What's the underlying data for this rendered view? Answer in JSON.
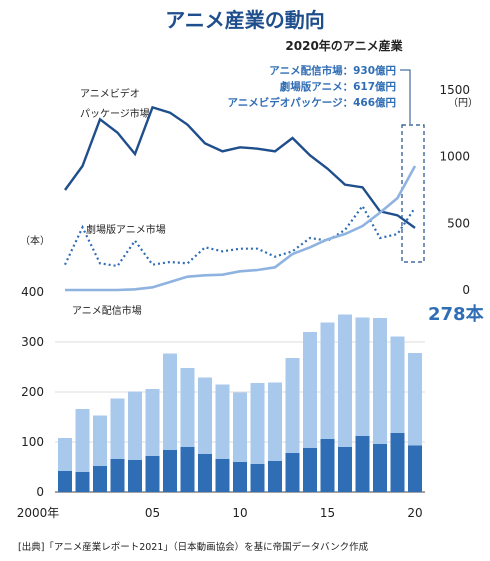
{
  "title": "アニメ産業の動向",
  "subtitle": "2020年のアニメ産業",
  "callouts": [
    {
      "label": "アニメ配信市場",
      "value": "930億円"
    },
    {
      "label": "劇場版アニメ",
      "value": "617億円"
    },
    {
      "label": "アニメビデオパッケージ",
      "value": "466億円"
    }
  ],
  "series_labels": {
    "video_line1": "アニメビデオ",
    "video_line2": "パッケージ市場",
    "theater": "劇場版アニメ市場",
    "streaming": "アニメ配信市場"
  },
  "left_axis": {
    "unit": "（本）",
    "ticks": [
      "400",
      "300",
      "200",
      "100",
      "0"
    ]
  },
  "right_axis": {
    "unit": "（円）",
    "ticks": [
      "1500",
      "1000",
      "500",
      "0"
    ]
  },
  "x_ticks": [
    "2000年",
    "05",
    "10",
    "15",
    "20"
  ],
  "callout_value": "278本",
  "source": "[出典]「アニメ産業レポート2021」（日本動画協会）を基に帝国データバンク作成",
  "colors": {
    "dark": "#2f6db5",
    "light": "#a9c9ec",
    "line": "#1f4e8c",
    "stream": "#8fb3e0"
  },
  "chart_data": {
    "type": "bar+line",
    "x": [
      2000,
      2001,
      2002,
      2003,
      2004,
      2005,
      2006,
      2007,
      2008,
      2009,
      2010,
      2011,
      2012,
      2013,
      2014,
      2015,
      2016,
      2017,
      2018,
      2019,
      2020
    ],
    "bars_total": [
      108,
      166,
      153,
      187,
      201,
      206,
      277,
      248,
      229,
      215,
      199,
      218,
      219,
      268,
      320,
      339,
      355,
      349,
      348,
      311,
      278
    ],
    "bars_dark": [
      42,
      40,
      52,
      66,
      64,
      72,
      84,
      90,
      76,
      66,
      60,
      56,
      62,
      78,
      88,
      106,
      90,
      112,
      96,
      118,
      93
    ],
    "lines": [
      {
        "key": "video",
        "values": [
          750,
          930,
          1280,
          1180,
          1020,
          1370,
          1330,
          1240,
          1100,
          1040,
          1070,
          1060,
          1040,
          1140,
          1010,
          910,
          790,
          770,
          590,
          560,
          466
        ]
      },
      {
        "key": "theater",
        "values": [
          190,
          470,
          200,
          180,
          370,
          190,
          210,
          200,
          320,
          290,
          310,
          310,
          250,
          290,
          390,
          370,
          450,
          630,
          390,
          420,
          617
        ]
      },
      {
        "key": "streaming",
        "values": [
          0,
          0,
          0,
          0,
          5,
          20,
          60,
          100,
          110,
          115,
          140,
          150,
          170,
          270,
          320,
          380,
          420,
          480,
          580,
          690,
          930
        ]
      }
    ],
    "left_ylim": [
      0,
      400
    ],
    "right_ylim": [
      0,
      1500
    ]
  }
}
